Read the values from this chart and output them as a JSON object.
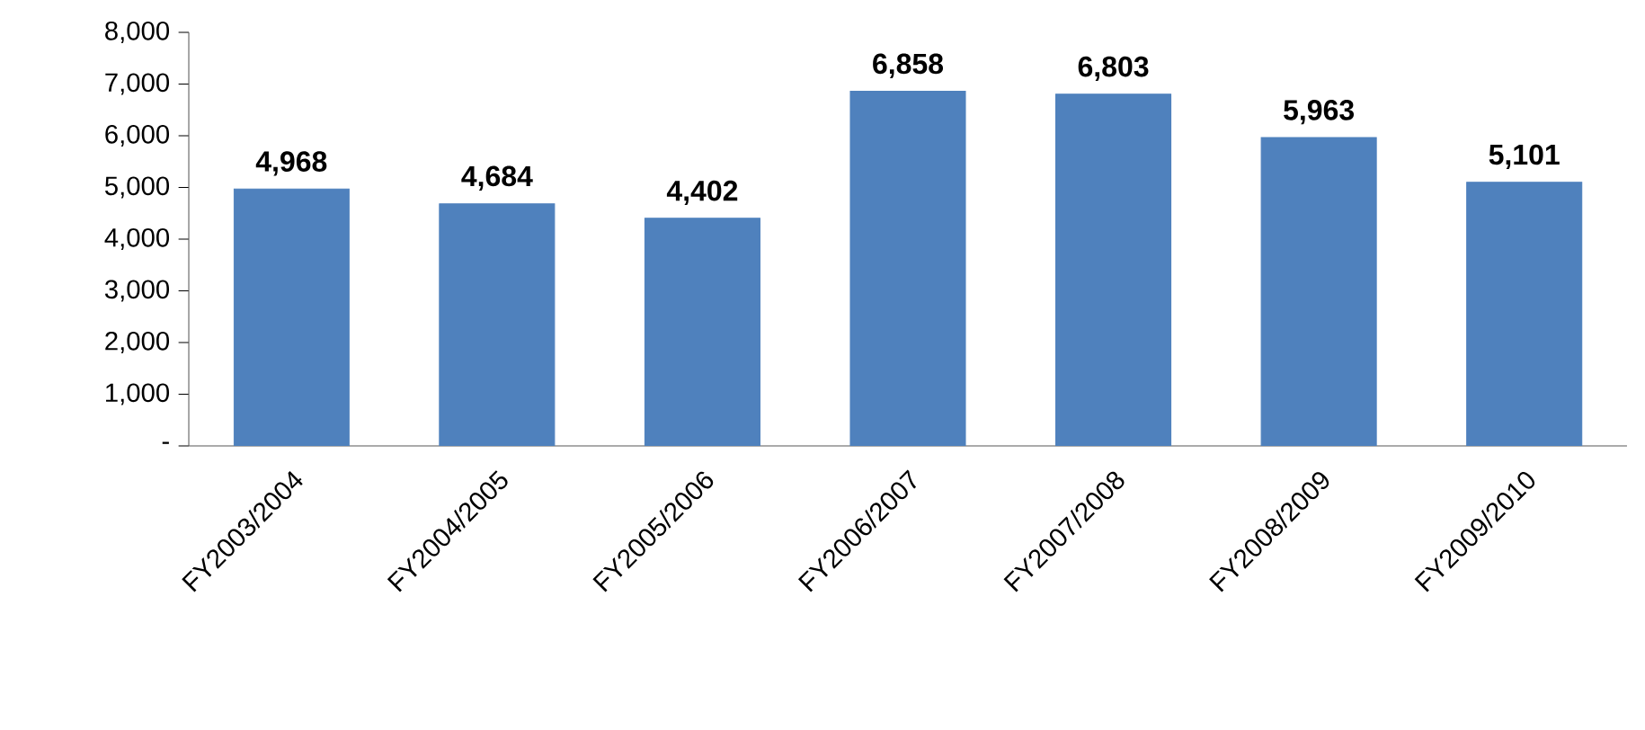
{
  "chart_data": {
    "type": "bar",
    "categories": [
      "FY2003/2004",
      "FY2004/2005",
      "FY2005/2006",
      "FY2006/2007",
      "FY2007/2008",
      "FY2008/2009",
      "FY2009/2010"
    ],
    "values": [
      4968,
      4684,
      4402,
      6858,
      6803,
      5963,
      5101
    ],
    "value_labels": [
      "4,968",
      "4,684",
      "4,402",
      "6,858",
      "6,803",
      "5,963",
      "5,101"
    ],
    "color": "#4f81bd",
    "ylim": [
      0,
      8000
    ],
    "yticks": [
      {
        "value": 0,
        "label": "-"
      },
      {
        "value": 1000,
        "label": "1,000"
      },
      {
        "value": 2000,
        "label": "2,000"
      },
      {
        "value": 3000,
        "label": "3,000"
      },
      {
        "value": 4000,
        "label": "4,000"
      },
      {
        "value": 5000,
        "label": "5,000"
      },
      {
        "value": 6000,
        "label": "6,000"
      },
      {
        "value": 7000,
        "label": "7,000"
      },
      {
        "value": 8000,
        "label": "8,000"
      }
    ],
    "grid": false
  }
}
